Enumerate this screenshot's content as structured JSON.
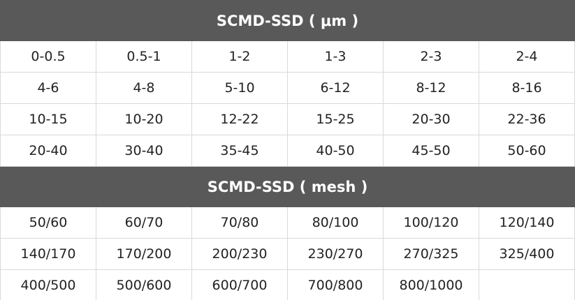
{
  "sections": [
    {
      "title": "SCMD-SSD ( μm )",
      "rows": [
        [
          "0-0.5",
          "0.5-1",
          "1-2",
          "1-3",
          "2-3",
          "2-4"
        ],
        [
          "4-6",
          "4-8",
          "5-10",
          "6-12",
          "8-12",
          "8-16"
        ],
        [
          "10-15",
          "10-20",
          "12-22",
          "15-25",
          "20-30",
          "22-36"
        ],
        [
          "20-40",
          "30-40",
          "35-45",
          "40-50",
          "45-50",
          "50-60"
        ]
      ]
    },
    {
      "title": "SCMD-SSD ( mesh )",
      "rows": [
        [
          "50/60",
          "60/70",
          "70/80",
          "80/100",
          "100/120",
          "120/140"
        ],
        [
          "140/170",
          "170/200",
          "200/230",
          "230/270",
          "270/325",
          "325/400"
        ],
        [
          "400/500",
          "500/600",
          "600/700",
          "700/800",
          "800/1000"
        ]
      ]
    }
  ]
}
